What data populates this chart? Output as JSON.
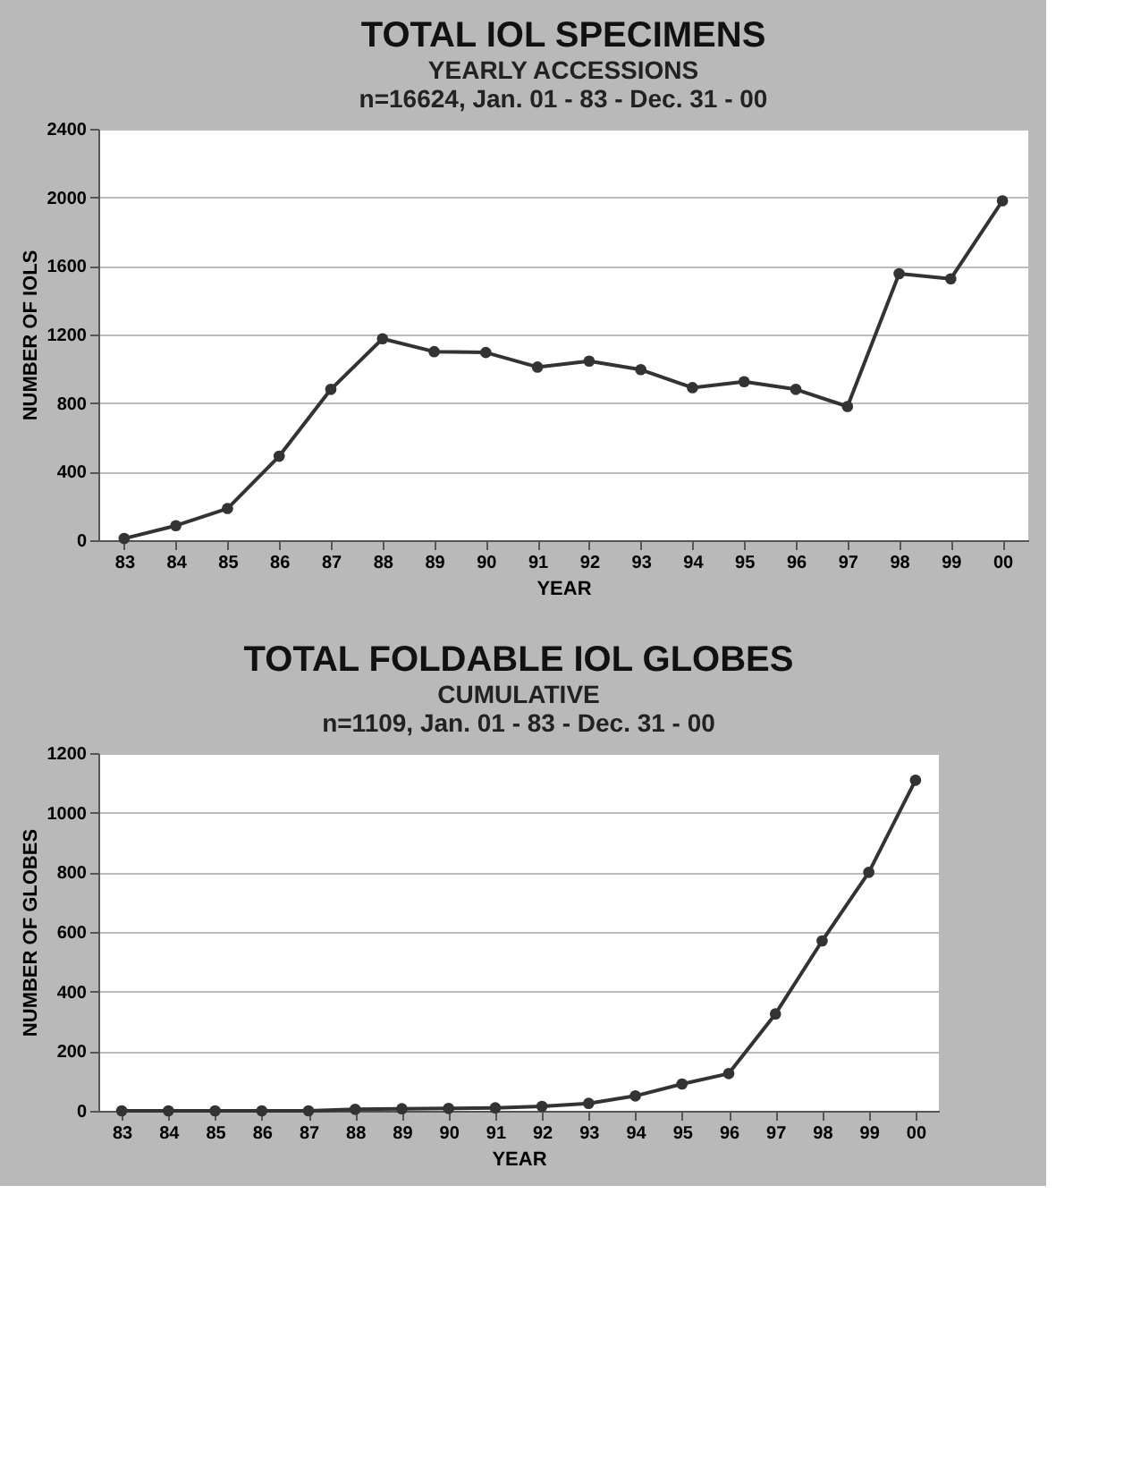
{
  "chart_data": [
    {
      "type": "line",
      "title": "TOTAL IOL SPECIMENS",
      "subtitle": "YEARLY ACCESSIONS",
      "annotations": [
        "n=16624, Jan. 01 - 83 - Dec. 31 - 00"
      ],
      "xlabel": "YEAR",
      "ylabel": "NUMBER OF IOLS",
      "categories": [
        "83",
        "84",
        "85",
        "86",
        "87",
        "88",
        "89",
        "90",
        "91",
        "92",
        "93",
        "94",
        "95",
        "96",
        "97",
        "98",
        "99",
        "00"
      ],
      "series": [
        {
          "color": "#333333",
          "values": [
            10,
            85,
            185,
            490,
            880,
            1175,
            1100,
            1095,
            1010,
            1045,
            995,
            890,
            925,
            880,
            780,
            1555,
            1525,
            1980
          ]
        }
      ],
      "ylim": [
        0,
        2400
      ],
      "yticks": [
        0,
        400,
        800,
        1200,
        1600,
        2000,
        2400
      ],
      "grid": "y",
      "marker": "circle",
      "line_style": "solid"
    },
    {
      "type": "line",
      "title": "TOTAL FOLDABLE IOL GLOBES",
      "subtitle": "CUMULATIVE",
      "annotations": [
        "n=1109, Jan. 01 - 83 - Dec. 31 - 00"
      ],
      "xlabel": "YEAR",
      "ylabel": "NUMBER OF GLOBES",
      "categories": [
        "83",
        "84",
        "85",
        "86",
        "87",
        "88",
        "89",
        "90",
        "91",
        "92",
        "93",
        "94",
        "95",
        "96",
        "97",
        "98",
        "99",
        "00"
      ],
      "series": [
        {
          "color": "#333333",
          "values": [
            0,
            0,
            0,
            0,
            0,
            5,
            7,
            8,
            10,
            15,
            25,
            50,
            90,
            125,
            325,
            570,
            800,
            1109
          ]
        }
      ],
      "ylim": [
        0,
        1200
      ],
      "yticks": [
        0,
        200,
        400,
        600,
        800,
        1000,
        1200
      ],
      "grid": "y",
      "marker": "circle",
      "line_style": "solid"
    }
  ]
}
